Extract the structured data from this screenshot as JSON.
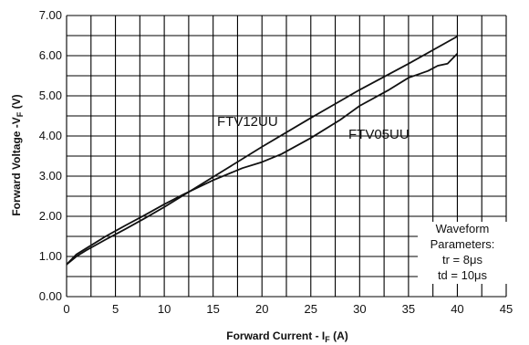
{
  "chart_data": {
    "type": "line",
    "xlabel": "Forward Current - I",
    "xlabel_sub": "F",
    "xlabel_unit": " (A)",
    "ylabel": "Forward Voltage -V",
    "ylabel_sub": "F",
    "ylabel_unit": " (V)",
    "xlim": [
      0,
      45
    ],
    "ylim": [
      0,
      7
    ],
    "xticks": [
      0,
      5,
      10,
      15,
      20,
      25,
      30,
      35,
      40,
      45
    ],
    "yticks": [
      "0.00",
      "1.00",
      "2.00",
      "3.00",
      "4.00",
      "5.00",
      "6.00",
      "7.00"
    ],
    "grid": true,
    "series": [
      {
        "name": "FTV12UU",
        "x": [
          0,
          1,
          2,
          4,
          6,
          8,
          10,
          15,
          20,
          25,
          30,
          35,
          40
        ],
        "y": [
          0.8,
          1.0,
          1.15,
          1.42,
          1.68,
          1.95,
          2.23,
          2.98,
          3.73,
          4.45,
          5.15,
          5.8,
          6.48
        ]
      },
      {
        "name": "FTV05UU",
        "x": [
          0,
          1,
          2,
          4,
          6,
          8,
          10,
          12,
          15,
          18,
          20,
          22,
          25,
          28,
          30,
          33,
          35,
          37,
          38,
          39,
          40
        ],
        "y": [
          0.8,
          1.05,
          1.2,
          1.5,
          1.77,
          2.03,
          2.3,
          2.55,
          2.9,
          3.2,
          3.35,
          3.55,
          3.95,
          4.4,
          4.75,
          5.15,
          5.45,
          5.62,
          5.75,
          5.8,
          6.05
        ]
      }
    ],
    "annotations": [
      "Waveform",
      "Parameters:",
      "tr = 8μs",
      "td = 10μs"
    ]
  }
}
